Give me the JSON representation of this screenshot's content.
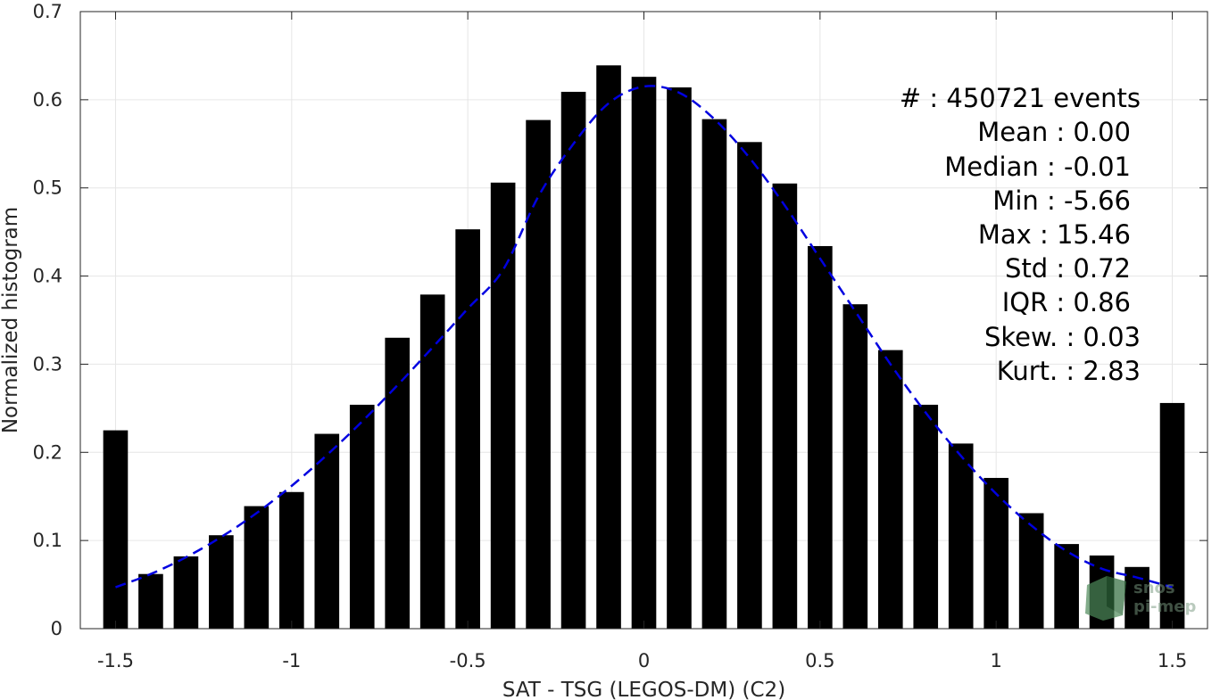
{
  "chart_data": {
    "type": "bar",
    "xlabel": "SAT - TSG (LEGOS-DM) (C2)",
    "ylabel": "Normalized histogram",
    "xlim": [
      -1.6,
      1.6
    ],
    "ylim": [
      0,
      0.7
    ],
    "xticks": [
      -1.5,
      -1,
      -0.5,
      0,
      0.5,
      1,
      1.5
    ],
    "xtick_labels": [
      "-1.5",
      "-1",
      "-0.5",
      "0",
      "0.5",
      "1",
      "1.5"
    ],
    "yticks": [
      0,
      0.1,
      0.2,
      0.3,
      0.4,
      0.5,
      0.6,
      0.7
    ],
    "ytick_labels": [
      "0",
      "0.1",
      "0.2",
      "0.3",
      "0.4",
      "0.5",
      "0.6",
      "0.7"
    ],
    "grid": true,
    "bar_width": 0.07,
    "bar_color": "#000000",
    "bars": {
      "x": [
        -1.5,
        -1.4,
        -1.3,
        -1.2,
        -1.1,
        -1.0,
        -0.9,
        -0.8,
        -0.7,
        -0.6,
        -0.5,
        -0.4,
        -0.3,
        -0.2,
        -0.1,
        0.0,
        0.1,
        0.2,
        0.3,
        0.4,
        0.5,
        0.6,
        0.7,
        0.8,
        0.9,
        1.0,
        1.1,
        1.2,
        1.3,
        1.4,
        1.5
      ],
      "values": [
        0.225,
        0.062,
        0.082,
        0.106,
        0.139,
        0.155,
        0.221,
        0.254,
        0.33,
        0.379,
        0.453,
        0.506,
        0.577,
        0.609,
        0.639,
        0.626,
        0.614,
        0.578,
        0.552,
        0.505,
        0.434,
        0.368,
        0.316,
        0.254,
        0.21,
        0.171,
        0.131,
        0.096,
        0.083,
        0.07,
        0.256
      ]
    },
    "fit_curve": {
      "style": "dashed",
      "color": "#0000e0",
      "x": [
        -1.5,
        -1.4,
        -1.3,
        -1.2,
        -1.1,
        -1.0,
        -0.9,
        -0.8,
        -0.7,
        -0.6,
        -0.5,
        -0.4,
        -0.3,
        -0.2,
        -0.1,
        0.0,
        0.1,
        0.2,
        0.3,
        0.4,
        0.5,
        0.6,
        0.7,
        0.8,
        0.9,
        1.0,
        1.1,
        1.2,
        1.3,
        1.4,
        1.5
      ],
      "y": [
        0.047,
        0.062,
        0.081,
        0.104,
        0.131,
        0.162,
        0.197,
        0.235,
        0.276,
        0.319,
        0.363,
        0.407,
        0.49,
        0.55,
        0.596,
        0.615,
        0.608,
        0.578,
        0.534,
        0.48,
        0.42,
        0.36,
        0.3,
        0.245,
        0.196,
        0.153,
        0.117,
        0.088,
        0.068,
        0.058,
        0.047
      ]
    },
    "stats_box": {
      "placement": "top-right",
      "lines": [
        "#  : 450721 events",
        "Mean : 0.00",
        "Median : -0.01",
        "Min : -5.66",
        "Max : 15.46",
        "Std : 0.72",
        "IQR : 0.86",
        "Skew. : 0.03",
        "Kurt. : 2.83"
      ]
    },
    "watermark": {
      "line1": "snos",
      "line2": "pi-mep",
      "placement": "bottom-right",
      "color": "#5a8a60"
    }
  }
}
